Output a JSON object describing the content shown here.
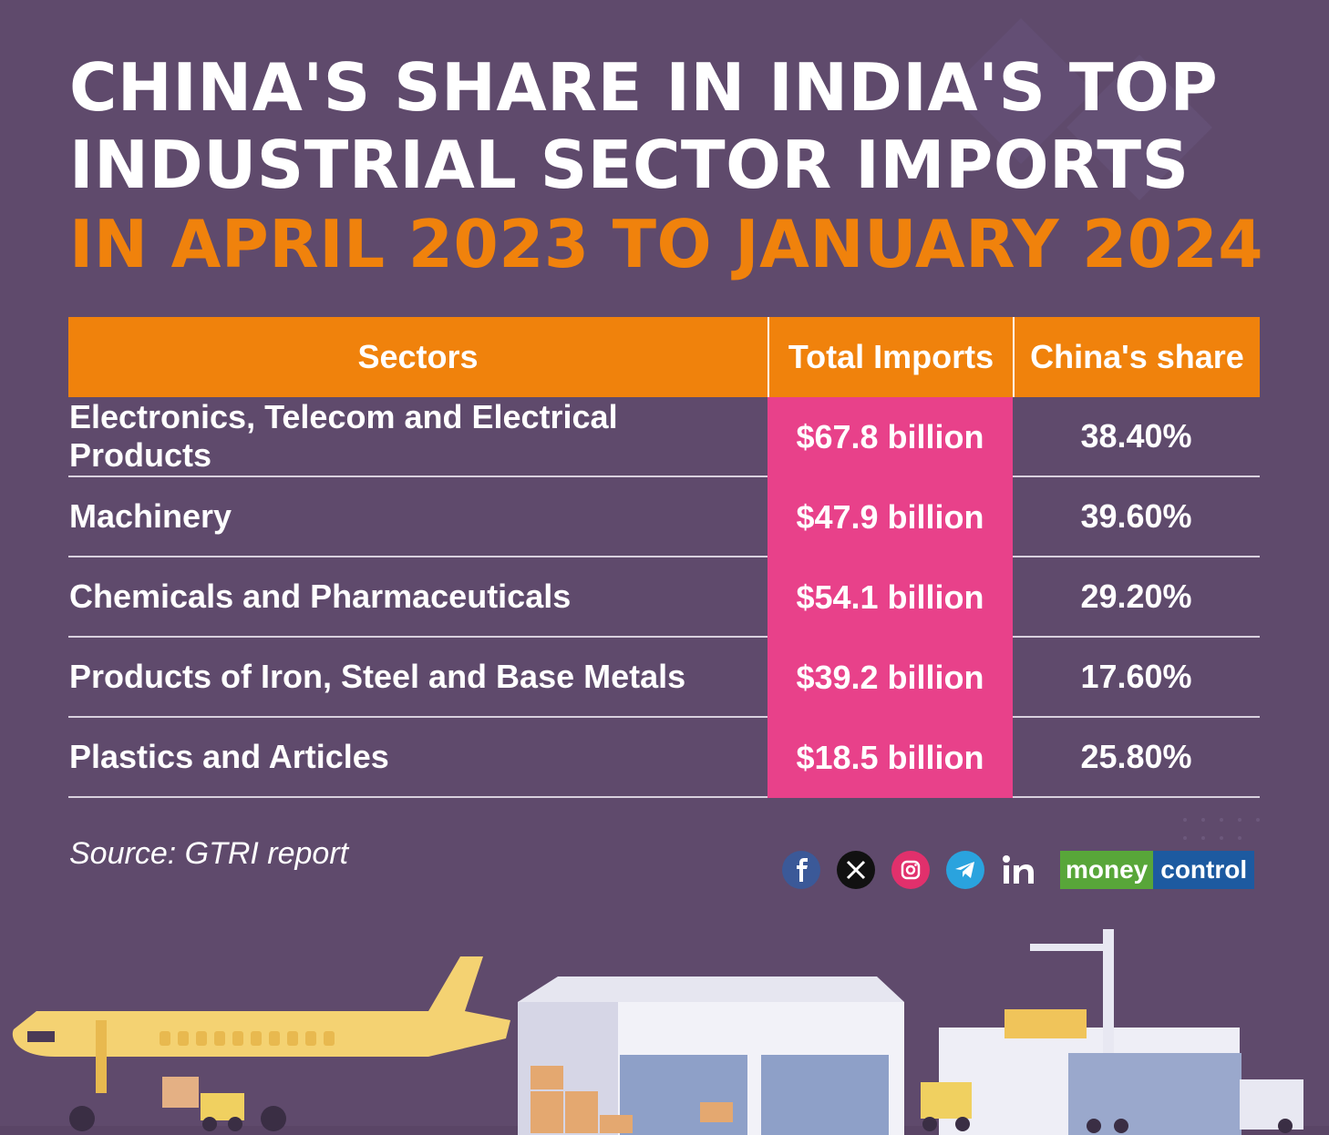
{
  "title": {
    "line1": "CHINA'S SHARE IN INDIA'S TOP",
    "line2": "INDUSTRIAL SECTOR IMPORTS",
    "line3": "IN APRIL 2023 TO JANUARY 2024"
  },
  "colors": {
    "background": "#5f4a6c",
    "accent_orange": "#f0820c",
    "accent_pink": "#e8418a"
  },
  "chart_data": {
    "type": "table",
    "title": "CHINA'S SHARE IN INDIA'S TOP INDUSTRIAL SECTOR IMPORTS IN APRIL 2023 TO JANUARY 2024",
    "columns": [
      "Sectors",
      "Total Imports",
      "China's share"
    ],
    "rows": [
      [
        "Electronics, Telecom and Electrical Products",
        "$67.8 billion",
        "38.40%"
      ],
      [
        "Machinery",
        "$47.9 billion",
        "39.60%"
      ],
      [
        "Chemicals and Pharmaceuticals",
        "$54.1 billion",
        "29.20%"
      ],
      [
        "Products of Iron, Steel and Base Metals",
        "$39.2 billion",
        "17.60%"
      ],
      [
        "Plastics and Articles",
        "$18.5 billion",
        "25.80%"
      ]
    ]
  },
  "source": "Source: GTRI report",
  "social_icons": [
    "facebook-icon",
    "x-icon",
    "instagram-icon",
    "telegram-icon",
    "linkedin-icon"
  ],
  "logo": {
    "part1": "money",
    "part2": "control"
  }
}
